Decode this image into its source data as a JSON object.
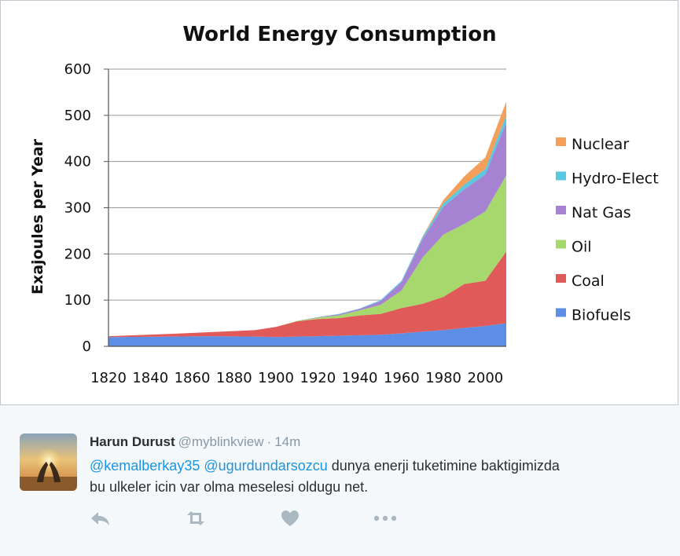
{
  "chart_data": {
    "type": "area",
    "stacked": true,
    "title": "World Energy Consumption",
    "ylabel": "Exajoules per Year",
    "xlabel": "",
    "xlim": [
      1820,
      2010
    ],
    "ylim": [
      0,
      600
    ],
    "x_ticks": [
      "1820",
      "1840",
      "1860",
      "1880",
      "1900",
      "1920",
      "1940",
      "1960",
      "1980",
      "2000"
    ],
    "y_ticks": [
      "0",
      "100",
      "200",
      "300",
      "400",
      "500",
      "600"
    ],
    "grid": "horizontal",
    "legend_position": "right",
    "x": [
      1820,
      1850,
      1870,
      1890,
      1900,
      1910,
      1920,
      1930,
      1940,
      1950,
      1960,
      1970,
      1980,
      1990,
      2000,
      2010
    ],
    "series": [
      {
        "name": "Biofuels",
        "color": "#5b8ee4",
        "values": [
          20,
          21,
          22,
          21,
          20,
          21,
          22,
          23,
          24,
          25,
          28,
          32,
          35,
          40,
          44,
          50
        ]
      },
      {
        "name": "Coal",
        "color": "#e05a5a",
        "values": [
          2,
          6,
          9,
          14,
          22,
          33,
          37,
          38,
          43,
          45,
          55,
          60,
          72,
          95,
          98,
          155
        ]
      },
      {
        "name": "Oil",
        "color": "#a7d86d",
        "values": [
          0,
          0,
          0,
          0,
          0,
          1,
          3,
          6,
          11,
          20,
          38,
          100,
          135,
          130,
          150,
          165
        ]
      },
      {
        "name": "Nat Gas",
        "color": "#a582d2",
        "values": [
          0,
          0,
          0,
          0,
          0,
          0,
          1,
          2,
          3,
          8,
          18,
          40,
          60,
          75,
          80,
          115
        ]
      },
      {
        "name": "Hydro-Elect",
        "color": "#5cc8e0",
        "values": [
          0,
          0,
          0,
          0,
          0,
          0,
          0,
          1,
          1,
          2,
          3,
          5,
          8,
          10,
          12,
          15
        ]
      },
      {
        "name": "Nuclear",
        "color": "#f5a05a",
        "values": [
          0,
          0,
          0,
          0,
          0,
          0,
          0,
          0,
          0,
          0,
          0,
          1,
          7,
          18,
          25,
          30
        ]
      }
    ]
  },
  "tweet": {
    "fullname": "Harun Durust",
    "username": "@myblinkview",
    "separator": "·",
    "time": "14m",
    "mention1": "@kemalberkay35",
    "mention2": "@ugurdundarsozcu",
    "text_part1": " dunya enerji tuketimine baktigimizda",
    "text_part2": "bu ulkeler icin var olma meselesi oldugu net.",
    "avatar_icon": "sunset-hands-avatar",
    "actions": [
      "reply-icon",
      "retweet-icon",
      "like-icon",
      "more-icon"
    ],
    "action_color": "#aab8c2",
    "mention_color": "#1b95e0"
  }
}
